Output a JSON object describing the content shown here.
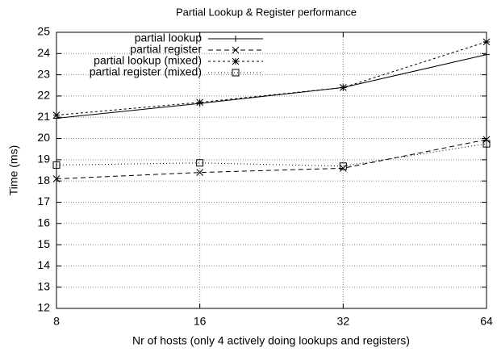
{
  "chart_data": {
    "type": "line",
    "title": "Partial Lookup & Register performance",
    "x_label": "Nr of hosts (only 4 actively doing lookups and registers)",
    "y_label": "Time (ms)",
    "x": [
      8,
      16,
      32,
      64
    ],
    "xscale": "log2",
    "xlim": [
      8,
      64
    ],
    "xticks": [
      8,
      16,
      32,
      64
    ],
    "ylim": [
      12,
      25
    ],
    "yticks": [
      12,
      13,
      14,
      15,
      16,
      17,
      18,
      19,
      20,
      21,
      22,
      23,
      24,
      25
    ],
    "grid": true,
    "legend": "top-left",
    "series": [
      {
        "name": "partial lookup",
        "color": "#000000",
        "dash": "none",
        "marker": "plus",
        "values": [
          20.95,
          21.65,
          22.4,
          23.95
        ]
      },
      {
        "name": "partial register",
        "color": "#000000",
        "dash": "6,4",
        "marker": "cross",
        "values": [
          18.1,
          18.4,
          18.6,
          19.95
        ]
      },
      {
        "name": "partial lookup (mixed)",
        "color": "#000000",
        "dash": "3,3",
        "marker": "star",
        "values": [
          21.1,
          21.7,
          22.4,
          24.55
        ]
      },
      {
        "name": "partial register (mixed)",
        "color": "#000000",
        "dash": "1,3",
        "marker": "square",
        "values": [
          18.75,
          18.85,
          18.7,
          19.75
        ]
      }
    ]
  }
}
